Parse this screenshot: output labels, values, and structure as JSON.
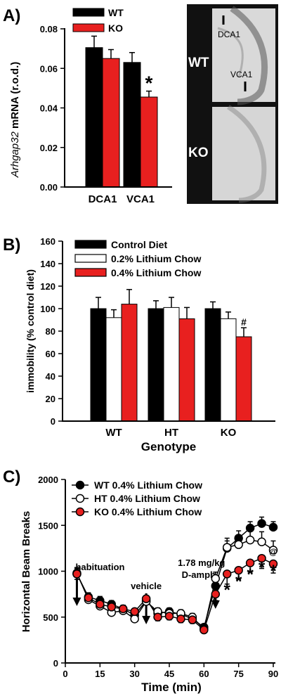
{
  "chart_data": [
    {
      "type": "bar",
      "panel_label": "A)",
      "categories": [
        "DCA1",
        "VCA1"
      ],
      "ylabel_italic": "Arhgap32",
      "ylabel_rest": " mRNA  (r.o.d.)",
      "ylim": [
        0,
        0.08
      ],
      "yticks": [
        "0.00",
        "0.02",
        "0.04",
        "0.06",
        "0.08"
      ],
      "series": [
        {
          "name": "WT",
          "values": [
            0.0705,
            0.063
          ],
          "errors": [
            0.0058,
            0.005
          ],
          "color": "#000000"
        },
        {
          "name": "KO",
          "values": [
            0.065,
            0.0455
          ],
          "errors": [
            0.0045,
            0.003
          ],
          "color": "#e8201f"
        }
      ],
      "annotations": [
        {
          "text": "*",
          "series": 1,
          "category": 1
        }
      ],
      "legend": "top-left",
      "image_labels": {
        "top_row": "WT",
        "bottom_row": "KO",
        "region1": "DCA1",
        "region2": "VCA1"
      }
    },
    {
      "type": "bar",
      "panel_label": "B)",
      "categories": [
        "WT",
        "HT",
        "KO"
      ],
      "xlabel": "Genotype",
      "ylabel": "immobility (% control diet)",
      "ylim": [
        0,
        160
      ],
      "yticks": [
        "0",
        "20",
        "40",
        "60",
        "80",
        "100",
        "120",
        "140",
        "160"
      ],
      "series": [
        {
          "name": "Control Diet",
          "values": [
            100,
            100,
            100
          ],
          "errors": [
            10,
            7,
            6
          ],
          "color": "#000000"
        },
        {
          "name": "0.2% Lithium Chow",
          "values": [
            92,
            101,
            91
          ],
          "errors": [
            7,
            9,
            6
          ],
          "color": "#ffffff"
        },
        {
          "name": "0.4% Lithium Chow",
          "values": [
            104,
            91,
            75
          ],
          "errors": [
            13,
            10,
            8
          ],
          "color": "#e8201f"
        }
      ],
      "annotations": [
        {
          "text": "#",
          "series": 2,
          "category": 2
        }
      ],
      "legend": "top-left"
    },
    {
      "type": "line",
      "panel_label": "C)",
      "xlabel": "Time (min)",
      "ylabel": "Horizontal Beam Breaks",
      "xlim": [
        0,
        90
      ],
      "ylim": [
        0,
        2000
      ],
      "xticks": [
        "0",
        "15",
        "30",
        "45",
        "60",
        "75",
        "90"
      ],
      "yticks": [
        "0",
        "500",
        "1000",
        "1500",
        "2000"
      ],
      "x": [
        5,
        10,
        15,
        20,
        25,
        30,
        35,
        40,
        45,
        50,
        55,
        60,
        65,
        70,
        75,
        80,
        85,
        90
      ],
      "series": [
        {
          "name": "WT 0.4% Lithium Chow",
          "marker": "filled-black",
          "values": [
            970,
            720,
            680,
            640,
            590,
            520,
            680,
            540,
            560,
            530,
            480,
            390,
            840,
            1250,
            1360,
            1470,
            1520,
            1480
          ],
          "errors": [
            60,
            45,
            45,
            40,
            40,
            40,
            40,
            40,
            40,
            40,
            40,
            30,
            70,
            80,
            80,
            70,
            70,
            60
          ]
        },
        {
          "name": "HT 0.4% Lithium Chow",
          "marker": "open",
          "values": [
            980,
            690,
            620,
            550,
            570,
            480,
            670,
            560,
            540,
            540,
            500,
            370,
            920,
            1260,
            1290,
            1340,
            1320,
            1230
          ],
          "errors": [
            60,
            40,
            40,
            40,
            40,
            40,
            40,
            40,
            40,
            40,
            40,
            30,
            70,
            100,
            100,
            110,
            110,
            100
          ]
        },
        {
          "name": "KO 0.4% Lithium Chow",
          "marker": "filled-red",
          "values": [
            970,
            710,
            640,
            610,
            590,
            560,
            700,
            500,
            510,
            480,
            470,
            360,
            750,
            970,
            1010,
            1090,
            1140,
            1080
          ],
          "errors": [
            60,
            40,
            40,
            40,
            40,
            40,
            40,
            40,
            40,
            40,
            40,
            30,
            70,
            110,
            100,
            100,
            110,
            100
          ]
        }
      ],
      "annotations": [
        {
          "text": "habituation",
          "x": 5
        },
        {
          "text": "vehicle",
          "x": 35
        },
        {
          "text": "1.78 mg/kg",
          "x": 65
        },
        {
          "text": "D-amph",
          "x": 65
        }
      ],
      "significance": [
        {
          "text": "*",
          "x": 70
        },
        {
          "text": "*",
          "x": 75
        },
        {
          "text": "*",
          "x": 80
        },
        {
          "text": "*",
          "x": 85
        },
        {
          "text": "*",
          "x": 90
        },
        {
          "text": "@",
          "x": 90
        }
      ],
      "legend": "top-left"
    }
  ]
}
